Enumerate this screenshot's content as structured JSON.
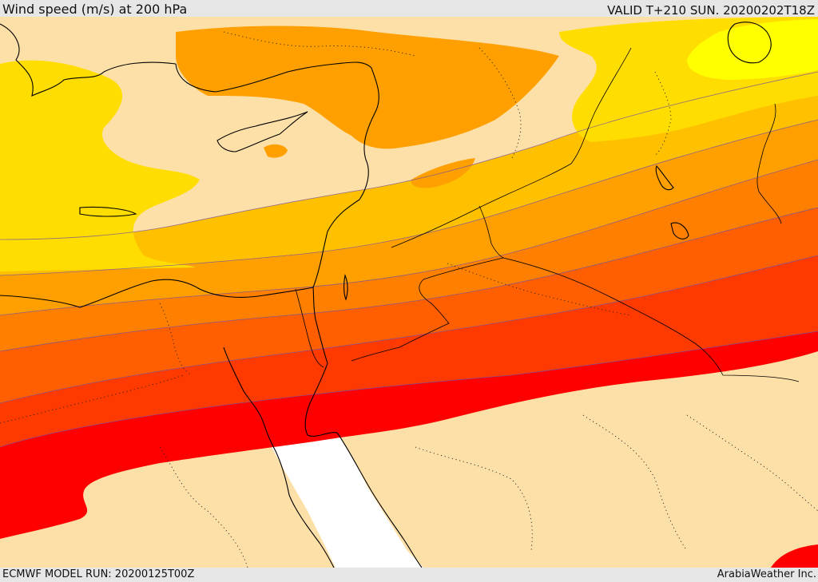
{
  "header": {
    "title": "Wind speed (m/s) at 200 hPa",
    "valid_time": "VALID T+210 SUN. 20200202T18Z"
  },
  "footer": {
    "model_run": "ECMWF MODEL RUN: 20200125T00Z",
    "credit": "ArabiaWeather Inc."
  },
  "colors": {
    "land_below_threshold": "#fde0a8",
    "sea_below_threshold": "#ffffff",
    "band_yellow_light": "#ffff00",
    "band_yellow": "#ffdd00",
    "band_gold": "#ffc000",
    "band_amber": "#ffa000",
    "band_orange": "#ff7f00",
    "band_dark_orange": "#ff5f00",
    "band_red_orange": "#ff3a00",
    "band_red": "#ff0000"
  }
}
